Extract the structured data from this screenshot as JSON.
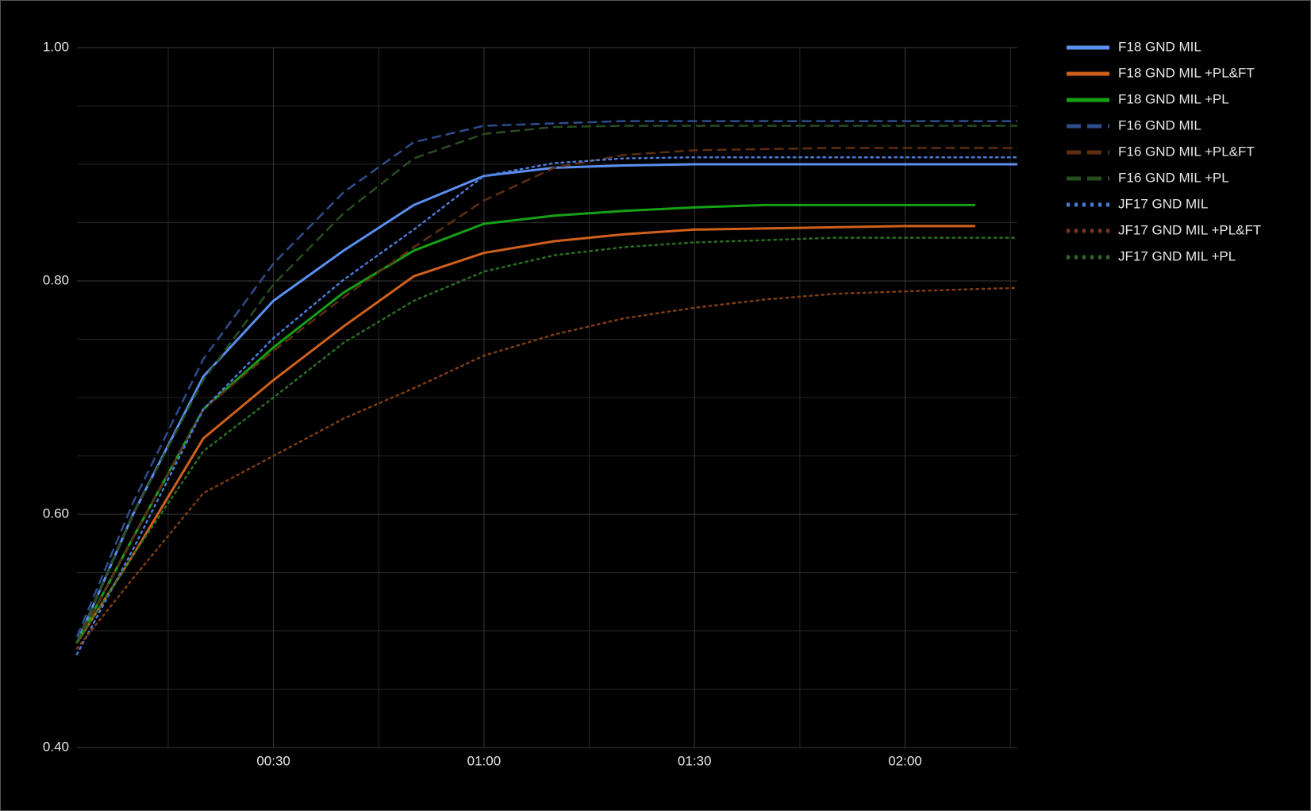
{
  "chart_data": {
    "type": "line",
    "x": [
      2,
      10,
      20,
      30,
      40,
      50,
      60,
      70,
      80,
      90,
      100,
      110,
      120,
      130,
      136
    ],
    "xlim": [
      2,
      136
    ],
    "xticks": [
      {
        "value": 30,
        "label": "00:30"
      },
      {
        "value": 60,
        "label": "01:00"
      },
      {
        "value": 90,
        "label": "01:30"
      },
      {
        "value": 120,
        "label": "02:00"
      }
    ],
    "x_minor_grid": [
      15,
      45,
      75,
      105,
      135
    ],
    "ylim": [
      0.4,
      1.0
    ],
    "yticks": [
      {
        "value": 0.4,
        "label": "0.40"
      },
      {
        "value": 0.6,
        "label": "0.60"
      },
      {
        "value": 0.8,
        "label": "0.80"
      },
      {
        "value": 1.0,
        "label": "1.00"
      }
    ],
    "y_minor_grid": [
      0.45,
      0.5,
      0.55,
      0.65,
      0.7,
      0.75,
      0.85,
      0.9,
      0.95
    ],
    "grid": true,
    "legend": "right",
    "series": [
      {
        "name": "F18 GND MIL",
        "color": "#5b8ff0",
        "dash": "solid",
        "values": [
          0.49,
          0.6,
          0.718,
          0.783,
          0.826,
          0.865,
          0.89,
          0.897,
          0.899,
          0.9,
          0.9,
          0.9,
          0.9,
          0.9,
          0.9
        ]
      },
      {
        "name": "F18 GND MIL +PL&FT",
        "color": "#d0601c",
        "dash": "solid",
        "values": [
          0.49,
          0.565,
          0.665,
          0.715,
          0.761,
          0.804,
          0.824,
          0.834,
          0.84,
          0.844,
          0.845,
          0.846,
          0.847,
          0.847,
          null
        ]
      },
      {
        "name": "F18 GND MIL +PL",
        "color": "#16a016",
        "dash": "solid",
        "values": [
          0.49,
          0.58,
          0.69,
          0.743,
          0.79,
          0.826,
          0.849,
          0.856,
          0.86,
          0.863,
          0.865,
          0.865,
          0.865,
          0.865,
          null
        ]
      },
      {
        "name": "F16 GND MIL",
        "color": "#2e4d8c",
        "dash": "dashed",
        "values": [
          0.495,
          0.61,
          0.733,
          0.815,
          0.876,
          0.919,
          0.933,
          0.935,
          0.937,
          0.937,
          0.937,
          0.937,
          0.937,
          0.937,
          0.937
        ]
      },
      {
        "name": "F16 GND MIL +PL&FT",
        "color": "#5e2e12",
        "dash": "dashed",
        "values": [
          0.49,
          0.58,
          0.69,
          0.74,
          0.786,
          0.829,
          0.869,
          0.897,
          0.908,
          0.912,
          0.913,
          0.914,
          0.914,
          0.914,
          0.914
        ]
      },
      {
        "name": "F16 GND MIL +PL",
        "color": "#284d20",
        "dash": "dashed",
        "values": [
          0.49,
          0.6,
          0.715,
          0.797,
          0.858,
          0.905,
          0.926,
          0.932,
          0.933,
          0.933,
          0.933,
          0.933,
          0.933,
          0.933,
          0.933
        ]
      },
      {
        "name": "JF17 GND MIL",
        "color": "#4a7ad8",
        "dash": "dotted",
        "values": [
          0.48,
          0.57,
          0.69,
          0.751,
          0.801,
          0.844,
          0.89,
          0.901,
          0.905,
          0.906,
          0.906,
          0.906,
          0.906,
          0.906,
          0.906
        ]
      },
      {
        "name": "JF17 GND MIL +PL&FT",
        "color": "#7e3c16",
        "dash": "dotted",
        "values": [
          0.485,
          0.545,
          0.618,
          0.65,
          0.682,
          0.708,
          0.736,
          0.754,
          0.768,
          0.777,
          0.784,
          0.789,
          0.791,
          0.793,
          0.794
        ]
      },
      {
        "name": "JF17 GND MIL +PL",
        "color": "#2a6e22",
        "dash": "dotted",
        "values": [
          0.49,
          0.565,
          0.654,
          0.7,
          0.747,
          0.783,
          0.808,
          0.822,
          0.829,
          0.833,
          0.835,
          0.837,
          0.837,
          0.837,
          0.837
        ]
      }
    ]
  }
}
